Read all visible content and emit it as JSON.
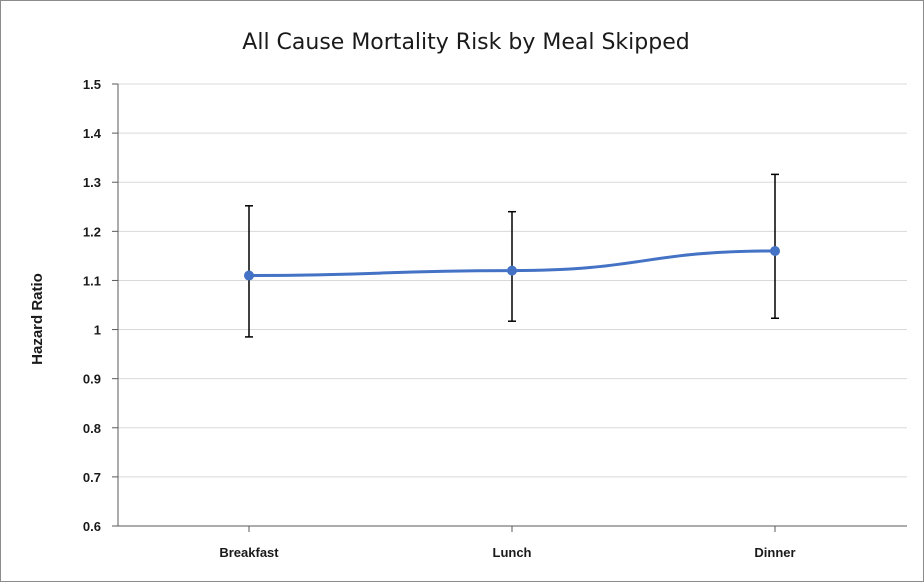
{
  "chart_data": {
    "type": "line",
    "title": "All Cause Mortality Risk by Meal Skipped",
    "xlabel": "",
    "ylabel": "Hazard Ratio",
    "categories": [
      "Breakfast",
      "Lunch",
      "Dinner"
    ],
    "series": [
      {
        "values": [
          1.11,
          1.12,
          1.16
        ],
        "error_low": [
          0.985,
          1.017,
          1.023
        ],
        "error_high": [
          1.252,
          1.24,
          1.316
        ],
        "color": "#4472C4"
      }
    ],
    "ylim": [
      0.6,
      1.5
    ],
    "yticks": [
      "0.6",
      "0.7",
      "0.8",
      "0.9",
      "1",
      "1.1",
      "1.2",
      "1.3",
      "1.4",
      "1.5"
    ],
    "ytick_values": [
      0.6,
      0.7,
      0.8,
      0.9,
      1.0,
      1.1,
      1.2,
      1.3,
      1.4,
      1.5
    ],
    "grid": true,
    "legend": "none"
  }
}
